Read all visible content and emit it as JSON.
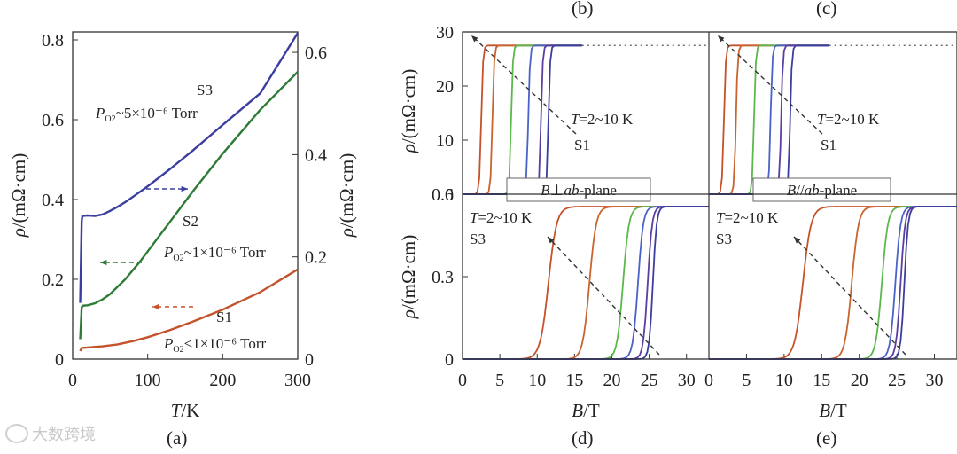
{
  "watermark": "大数跨境",
  "colors": {
    "blue": "#3b3e9e",
    "green": "#2e7b36",
    "orange": "#c4522a",
    "light_green": "#5cb84c",
    "mid_blue": "#4a63c8",
    "purple": "#5a3ea0"
  },
  "chart_data": [
    {
      "id": "a",
      "type": "line",
      "panel_label": "(a)",
      "xlabel_italic": "T",
      "xlabel_unit": "/K",
      "ylabel": "ρ/(mΩ·cm)",
      "ylabel_right": "ρ/(mΩ·cm)",
      "xlim": [
        0,
        300
      ],
      "ylim": [
        0,
        0.82
      ],
      "ylim_right": [
        0,
        0.64
      ],
      "xticks": [
        "0",
        "100",
        "200",
        "300"
      ],
      "yticks": [
        "0",
        "0.2",
        "0.4",
        "0.6",
        "0.8"
      ],
      "yticks_right": [
        "0",
        "0.2",
        "0.4",
        "0.6"
      ],
      "series": [
        {
          "name": "S3",
          "axis": "right",
          "color": "#3b3e9e",
          "label_line1": "S3",
          "label_line2": "P",
          "label_sub": "O2",
          "label_rest": "~5×10⁻⁶ Torr",
          "x": [
            10,
            12,
            13,
            20,
            30,
            40,
            50,
            60,
            70,
            80,
            100,
            130,
            160,
            200,
            250,
            300
          ],
          "y": [
            0.11,
            0.27,
            0.28,
            0.281,
            0.28,
            0.283,
            0.29,
            0.298,
            0.307,
            0.317,
            0.338,
            0.372,
            0.408,
            0.458,
            0.52,
            0.638
          ]
        },
        {
          "name": "S2",
          "axis": "left",
          "color": "#2e7b36",
          "label_line1": "S2",
          "label_line2": "P",
          "label_sub": "O2",
          "label_rest": "~1×10⁻⁶ Torr",
          "x": [
            10,
            12,
            14,
            20,
            30,
            40,
            50,
            70,
            90,
            110,
            130,
            160,
            200,
            250,
            300
          ],
          "y": [
            0.05,
            0.13,
            0.134,
            0.135,
            0.14,
            0.15,
            0.163,
            0.2,
            0.245,
            0.295,
            0.345,
            0.42,
            0.515,
            0.625,
            0.72
          ]
        },
        {
          "name": "S1",
          "axis": "left",
          "color": "#c4522a",
          "label_line1": "S1",
          "label_line2": "P",
          "label_sub": "O2",
          "label_rest": "<1×10⁻⁶ Torr",
          "x": [
            10,
            12,
            20,
            40,
            60,
            80,
            100,
            130,
            160,
            200,
            250,
            300
          ],
          "y": [
            0.02,
            0.028,
            0.029,
            0.032,
            0.037,
            0.045,
            0.055,
            0.073,
            0.094,
            0.124,
            0.168,
            0.225
          ]
        }
      ]
    },
    {
      "id": "b",
      "type": "line",
      "panel_label": "(b)",
      "ylabel": "ρ/(mΩ·cm)",
      "xlim": [
        0,
        33
      ],
      "ylim": [
        0,
        30
      ],
      "yticks": [
        "0",
        "10",
        "20",
        "30"
      ],
      "annotation_T": "T",
      "annotation_range": "=2~10 K",
      "sample": "S1",
      "field_label_italic": "B",
      "field_label_rest": "⊥",
      "field_label_ab": "ab",
      "field_label_end": "-plane",
      "saturation": 27.5,
      "transition_fields": [
        2.5,
        4.0,
        6.5,
        8.8,
        10.5,
        11.5
      ],
      "x_end": 16
    },
    {
      "id": "c",
      "type": "line",
      "panel_label": "(c)",
      "xlim": [
        0,
        33
      ],
      "ylim": [
        0,
        30
      ],
      "annotation_T": "T",
      "annotation_range": "=2~10 K",
      "sample": "S1",
      "field_label_italic": "B",
      "field_label_rest": "//",
      "field_label_ab": "ab",
      "field_label_end": "-plane",
      "saturation": 27.5,
      "transition_fields": [
        2.0,
        3.6,
        6.0,
        8.2,
        9.6,
        10.8
      ],
      "x_end": 16
    },
    {
      "id": "d",
      "type": "line",
      "panel_label": "(d)",
      "xlabel_italic": "B",
      "xlabel_unit": "/T",
      "ylabel": "ρ/(mΩ·cm)",
      "xlim": [
        0,
        33
      ],
      "ylim": [
        0,
        0.6
      ],
      "xticks": [
        "0",
        "5",
        "10",
        "15",
        "20",
        "25",
        "30"
      ],
      "yticks": [
        "0",
        "0.3",
        "0.6"
      ],
      "annotation_T": "T",
      "annotation_range": "=2~10 K",
      "sample": "S3",
      "saturation": 0.555,
      "transition_fields": [
        11.5,
        17.0,
        21.5,
        23.5,
        24.8,
        25.5
      ]
    },
    {
      "id": "e",
      "type": "line",
      "panel_label": "(e)",
      "xlabel_italic": "B",
      "xlabel_unit": "/T",
      "xlim": [
        0,
        33
      ],
      "ylim": [
        0,
        0.6
      ],
      "xticks": [
        "0",
        "5",
        "10",
        "15",
        "20",
        "25",
        "30"
      ],
      "annotation_T": "T",
      "annotation_range": "=2~10 K",
      "sample": "S3",
      "saturation": 0.555,
      "transition_fields": [
        12.5,
        19.0,
        23.0,
        24.8,
        25.5,
        26.0
      ]
    }
  ]
}
